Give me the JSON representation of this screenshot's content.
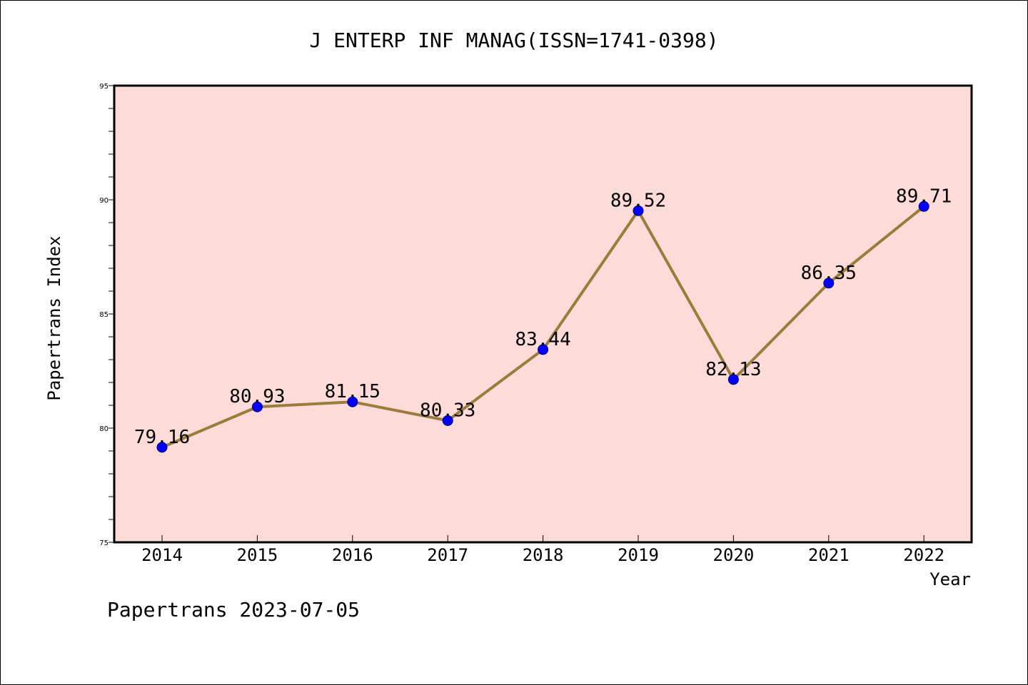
{
  "chart_data": {
    "type": "line",
    "title": "J ENTERP INF MANAG(ISSN=1741-0398)",
    "xlabel": "Year",
    "ylabel": "Papertrans Index",
    "categories": [
      "2014",
      "2015",
      "2016",
      "2017",
      "2018",
      "2019",
      "2020",
      "2021",
      "2022"
    ],
    "series": [
      {
        "values": [
          79.16,
          80.93,
          81.15,
          80.33,
          83.44,
          89.52,
          82.13,
          86.35,
          89.71
        ],
        "labels": [
          "79.16",
          "80.93",
          "81.15",
          "80.33",
          "83.44",
          "89.52",
          "82.13",
          "86.35",
          "89.71"
        ]
      }
    ],
    "ylim": [
      75,
      95
    ],
    "yticks": [
      "75",
      "80",
      "85",
      "90",
      "95"
    ],
    "grid": false,
    "colors": {
      "plot_background": "#fddbd8",
      "line": "#9a7d3a",
      "marker": "#0000ff"
    }
  },
  "footer": "Papertrans 2023-07-05"
}
